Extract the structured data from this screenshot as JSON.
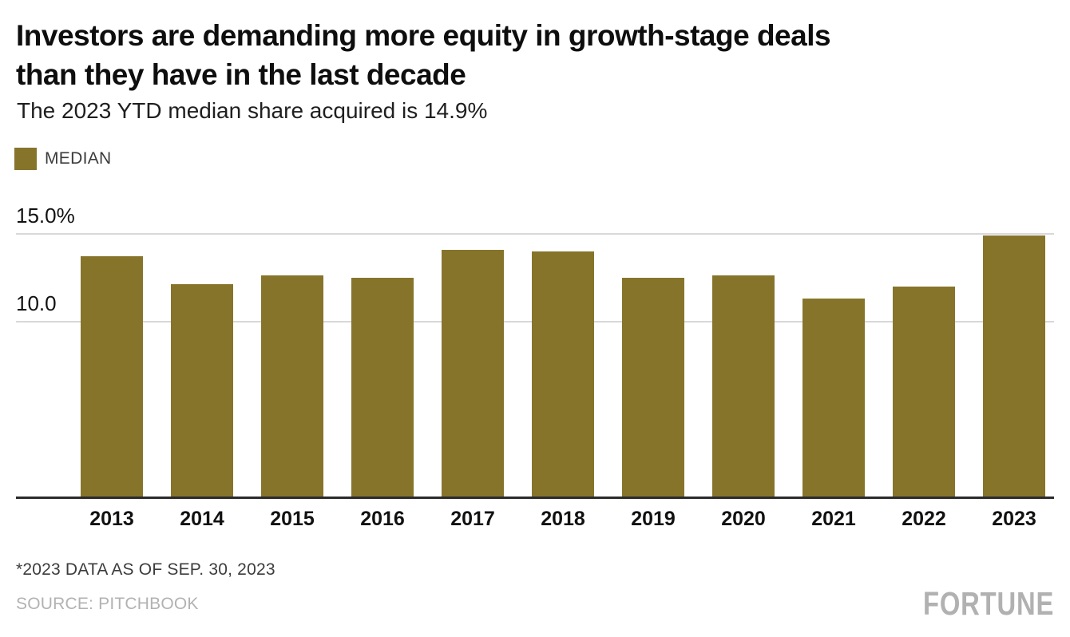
{
  "header": {
    "title_lines": [
      "Investors are demanding more equity in growth-stage deals",
      "than they have in the last decade"
    ],
    "subtitle": "The 2023 YTD median share acquired is 14.9%"
  },
  "legend": {
    "label": "MEDIAN",
    "swatch_color": "#87742B"
  },
  "chart_data": {
    "type": "bar",
    "title": "Investors are demanding more equity in growth-stage deals than they have in the last decade",
    "subtitle": "The 2023 YTD median share acquired is 14.9%",
    "categories": [
      "2013",
      "2014",
      "2015",
      "2016",
      "2017",
      "2018",
      "2019",
      "2020",
      "2021",
      "2022",
      "2023"
    ],
    "series": [
      {
        "name": "MEDIAN",
        "values": [
          13.7,
          12.1,
          12.6,
          12.5,
          14.1,
          14.0,
          12.5,
          12.6,
          11.3,
          12.0,
          14.9
        ]
      }
    ],
    "unit": "%",
    "ylim": [
      0,
      16
    ],
    "yticks": [
      {
        "value": 15.0,
        "label": "15.0%"
      },
      {
        "value": 10.0,
        "label": "10.0"
      }
    ],
    "grid": "horizontal",
    "legend_position": "top-left",
    "bar_color": "#87742B",
    "gridline_color": "#d8d8d8",
    "axis_color": "#2b2b2b"
  },
  "footer": {
    "footnote": "*2023 DATA AS OF SEP. 30, 2023",
    "source": "SOURCE: PITCHBOOK",
    "brand": "FORTUNE"
  }
}
